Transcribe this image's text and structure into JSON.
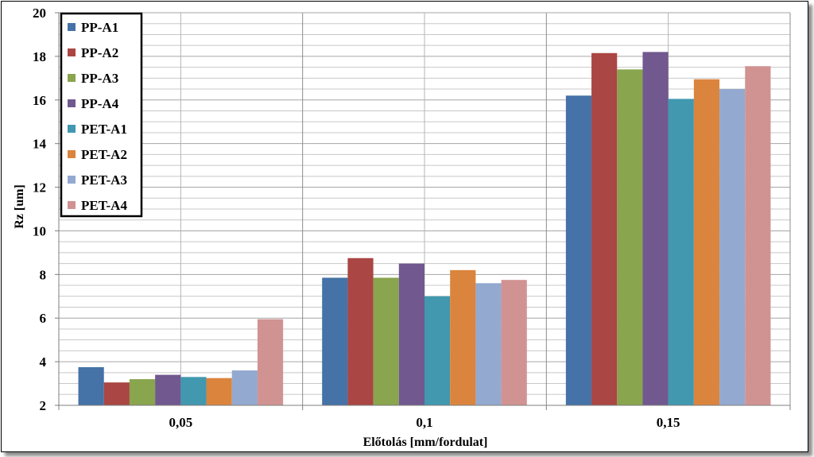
{
  "chart_data": {
    "type": "bar",
    "title": "",
    "xlabel": "Előtolás [mm/fordulat]",
    "ylabel": "Rz [um]",
    "ylim": [
      2,
      20
    ],
    "yticks": [
      2,
      4,
      6,
      8,
      10,
      12,
      14,
      16,
      18,
      20
    ],
    "minor_grid_step": 0.5,
    "grid": true,
    "legend_position": "top-left",
    "categories": [
      "0,05",
      "0,1",
      "0,15"
    ],
    "series": [
      {
        "name": "PP-A1",
        "color": "#4572A7",
        "values": [
          3.75,
          7.85,
          16.2
        ]
      },
      {
        "name": "PP-A2",
        "color": "#AA4643",
        "values": [
          3.05,
          8.75,
          18.15
        ]
      },
      {
        "name": "PP-A3",
        "color": "#89A54E",
        "values": [
          3.2,
          7.85,
          17.4
        ]
      },
      {
        "name": "PP-A4",
        "color": "#71588F",
        "values": [
          3.4,
          8.5,
          18.2
        ]
      },
      {
        "name": "PET-A1",
        "color": "#4198AF",
        "values": [
          3.3,
          7.0,
          16.05
        ]
      },
      {
        "name": "PET-A2",
        "color": "#DB843D",
        "values": [
          3.25,
          8.2,
          16.95
        ]
      },
      {
        "name": "PET-A3",
        "color": "#93A9CF",
        "values": [
          3.6,
          7.6,
          16.5
        ]
      },
      {
        "name": "PET-A4",
        "color": "#D19392",
        "values": [
          5.95,
          7.75,
          17.55
        ]
      }
    ]
  }
}
